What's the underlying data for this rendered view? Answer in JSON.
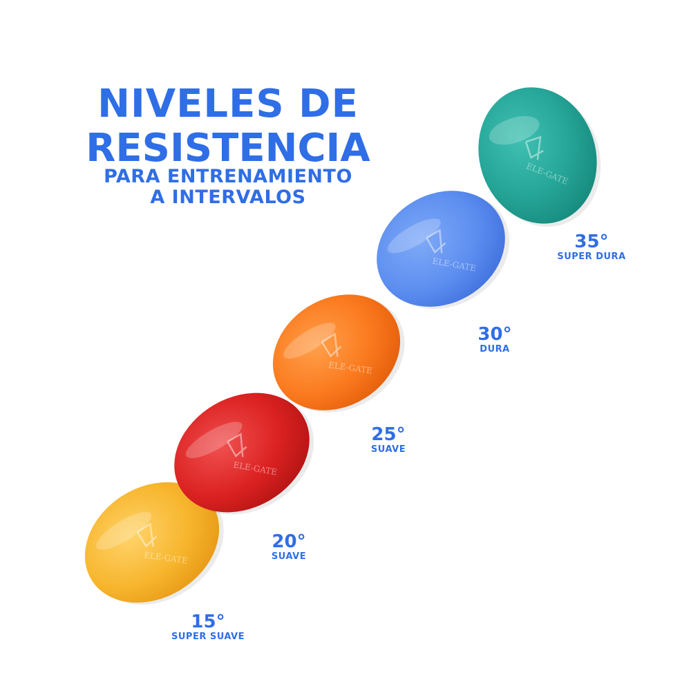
{
  "headline": {
    "title_line1": "NIVELES DE",
    "title_line2": "RESISTENCIA",
    "subtitle_line1": "PARA ENTRENAMIENTO",
    "subtitle_line2": "A INTERVALOS"
  },
  "brand_mark": "ELE-GATE",
  "accent_color": "#2f6ee6",
  "balls": [
    {
      "degree": "15°",
      "level": "SUPER SUAVE",
      "color": "#f7b62e",
      "highlight": "#ffd36a",
      "shade": "#e89a16"
    },
    {
      "degree": "20°",
      "level": "SUAVE",
      "color": "#dc2222",
      "highlight": "#f05050",
      "shade": "#b51414"
    },
    {
      "degree": "25°",
      "level": "SUAVE",
      "color": "#fb7a1e",
      "highlight": "#ffa04c",
      "shade": "#e45f0c"
    },
    {
      "degree": "30°",
      "level": "DURA",
      "color": "#5d8ff0",
      "highlight": "#7fa9f7",
      "shade": "#4272df"
    },
    {
      "degree": "35°",
      "level": "SUPER DURA",
      "color": "#25a597",
      "highlight": "#3fc0b2",
      "shade": "#168a7d"
    }
  ]
}
